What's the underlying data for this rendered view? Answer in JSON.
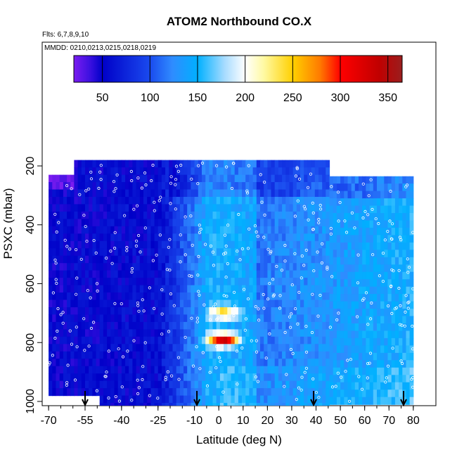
{
  "chart_data": {
    "type": "heatmap",
    "title": "ATOM2 Northbound CO.X",
    "flights_label": "Flts: 6,7,8,9,10",
    "dates_label": "MMDD: 0210,0213,0215,0218,0219",
    "xlabel": "Latitude (deg N)",
    "ylabel": "PSXC (mbar)",
    "xlim": [
      -70,
      82
    ],
    "ylim": [
      1010,
      100
    ],
    "y_reversed": true,
    "xticks": [
      -70,
      -55,
      -40,
      -25,
      -10,
      0,
      10,
      20,
      30,
      40,
      50,
      60,
      70,
      80
    ],
    "yticks": [
      200,
      400,
      600,
      800,
      1000
    ],
    "colorbar": {
      "range": [
        20,
        365
      ],
      "ticks": [
        50,
        100,
        150,
        200,
        250,
        300,
        350
      ],
      "placement": "top"
    },
    "grid": false,
    "field_extent": {
      "lat": [
        -70,
        80
      ],
      "pressure_top": [
        170,
        215
      ]
    },
    "features": [
      {
        "name": "low CO background",
        "lat_range": [
          -70,
          -25
        ],
        "value": 55
      },
      {
        "name": "transition gradient",
        "lat_range": [
          -25,
          -5
        ],
        "value": [
          60,
          140
        ]
      },
      {
        "name": "enhanced plume",
        "lat": 2,
        "pressure": 790,
        "value": 330
      },
      {
        "name": "enhanced plume",
        "lat": 2,
        "pressure": 700,
        "value": 240
      },
      {
        "name": "northern midlatitudes",
        "lat_range": [
          10,
          80
        ],
        "value": [
          110,
          160
        ]
      }
    ],
    "arrow_markers_lat": [
      -55,
      -9,
      39,
      76
    ]
  }
}
